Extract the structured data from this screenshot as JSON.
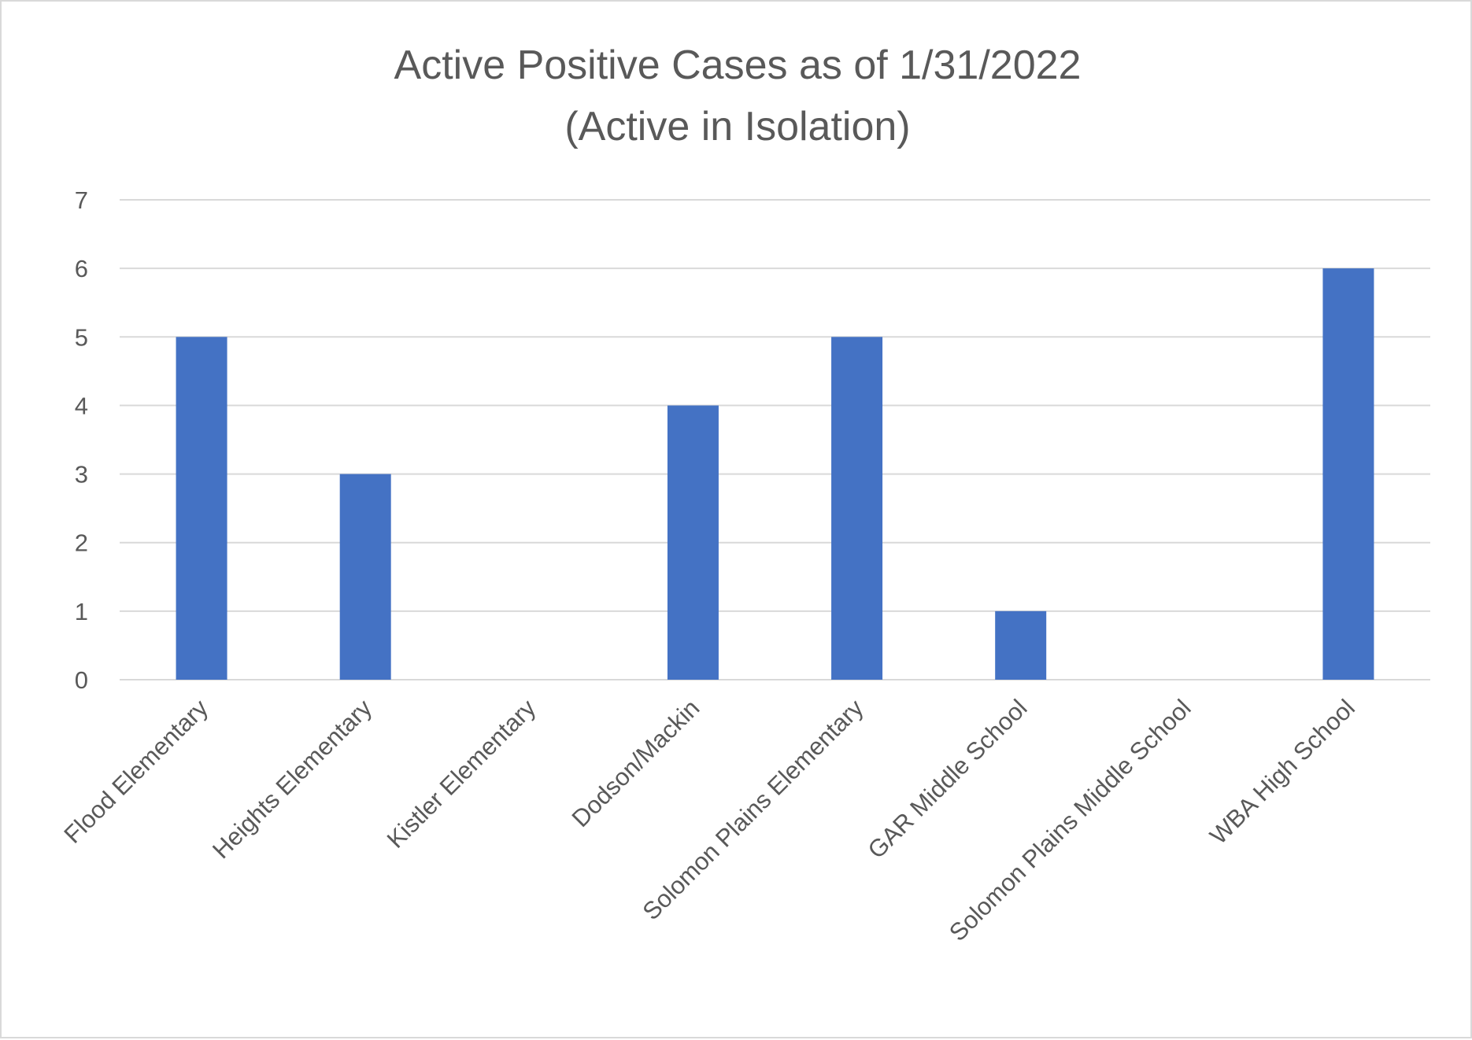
{
  "chart_data": {
    "type": "bar",
    "title_lines": [
      "Active Positive Cases as of 1/31/2022",
      "(Active in Isolation)"
    ],
    "categories": [
      "Flood Elementary",
      "Heights Elementary",
      "Kistler Elementary",
      "Dodson/Mackin",
      "Solomon Plains Elementary",
      "GAR Middle School",
      "Solomon Plains Middle School",
      "WBA High School"
    ],
    "values": [
      5,
      3,
      0,
      4,
      5,
      1,
      0,
      6
    ],
    "ylim": [
      0,
      7
    ],
    "yticks": [
      "0",
      "1",
      "2",
      "3",
      "4",
      "5",
      "6",
      "7"
    ],
    "grid": true,
    "legend": "none",
    "bar_color": "#4472c4"
  }
}
